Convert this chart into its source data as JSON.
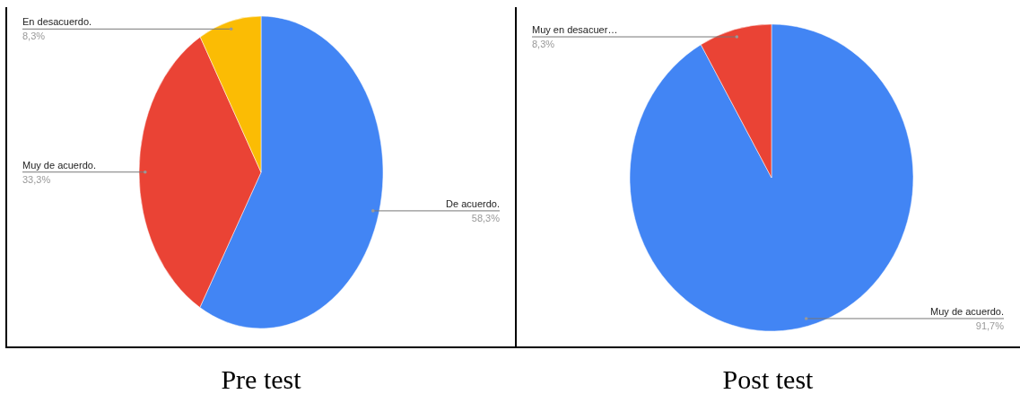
{
  "chart_data": [
    {
      "type": "pie",
      "title": "Pre test",
      "categories": [
        "De acuerdo.",
        "Muy de acuerdo.",
        "En desacuerdo."
      ],
      "values": [
        58.3,
        33.3,
        8.3
      ],
      "colors": [
        "#4285f4",
        "#ea4335",
        "#fbbc04"
      ],
      "value_labels": [
        "58,3%",
        "33,3%",
        "8,3%"
      ]
    },
    {
      "type": "pie",
      "title": "Post test",
      "categories": [
        "Muy de acuerdo.",
        "Muy en desacuer…"
      ],
      "values": [
        91.7,
        8.3
      ],
      "colors": [
        "#4285f4",
        "#ea4335"
      ],
      "value_labels": [
        "91,7%",
        "8,3%"
      ]
    }
  ]
}
